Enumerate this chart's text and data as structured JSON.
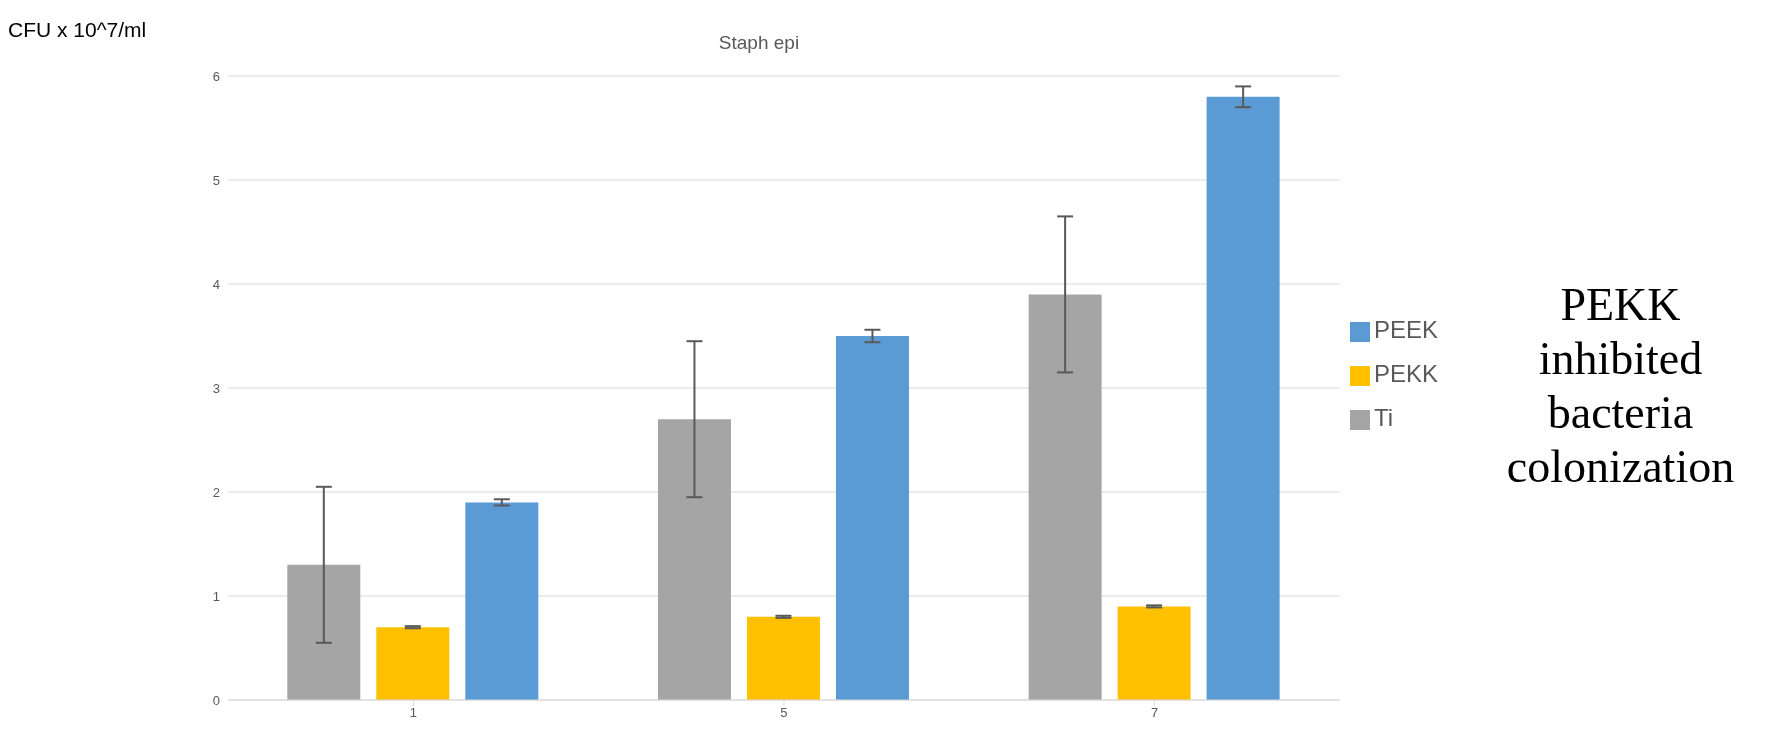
{
  "chart_data": {
    "type": "bar",
    "title": "Staph epi",
    "ylabel": "CFU x 10^7/ml",
    "categories": [
      "1",
      "5",
      "7"
    ],
    "series": [
      {
        "name": "Ti",
        "color": "#a5a5a5",
        "values": [
          1.3,
          2.7,
          3.9
        ],
        "errors": [
          0.75,
          0.75,
          0.75
        ]
      },
      {
        "name": "PEKK",
        "color": "#ffc000",
        "values": [
          0.7,
          0.8,
          0.9
        ],
        "errors": [
          0.01,
          0.01,
          0.01
        ]
      },
      {
        "name": "PEEK",
        "color": "#5b9bd5",
        "values": [
          1.9,
          3.5,
          5.8
        ],
        "errors": [
          0.03,
          0.06,
          0.1
        ]
      }
    ],
    "ylim": [
      0,
      6
    ],
    "yticks": [
      0,
      1,
      2,
      3,
      4,
      5,
      6
    ],
    "grid": "y",
    "legend": "right",
    "annotations": [
      "PEKK inhibited bacteria colonization"
    ]
  }
}
